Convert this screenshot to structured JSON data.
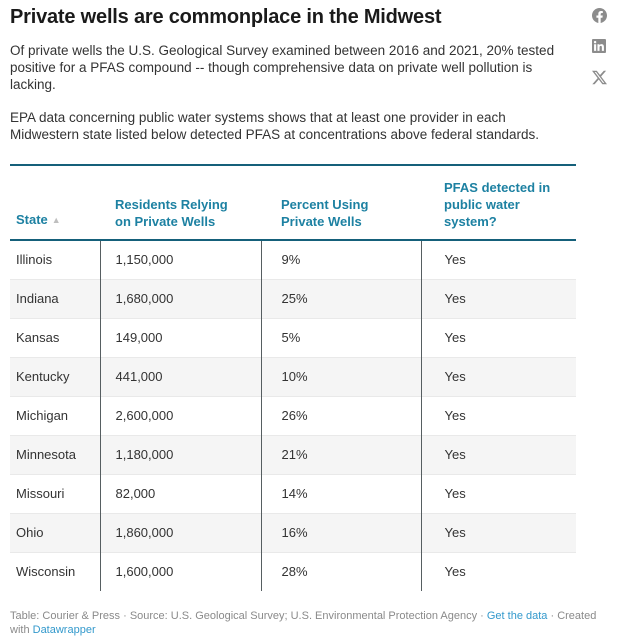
{
  "page": {
    "title": "Private wells are commonplace in the Midwest",
    "intro_1": "Of private wells the U.S. Geological Survey examined between 2016 and 2021, 20% tested positive for a PFAS compound -- though comprehensive data on private well pollution is lacking.",
    "intro_2": "EPA data concerning public water systems shows that at least one provider in each Midwestern state listed below detected PFAS at concentrations above federal standards."
  },
  "chart_data": {
    "type": "table",
    "title": "Private wells are commonplace in the Midwest",
    "columns": [
      "State",
      "Residents Relying on Private Wells",
      "Percent Using Private Wells",
      "PFAS detected in public water system?"
    ],
    "sort": {
      "column": "State",
      "direction": "ascending",
      "indicator": "▲"
    },
    "rows": [
      [
        "Illinois",
        "1,150,000",
        "9%",
        "Yes"
      ],
      [
        "Indiana",
        "1,680,000",
        "25%",
        "Yes"
      ],
      [
        "Kansas",
        "149,000",
        "5%",
        "Yes"
      ],
      [
        "Kentucky",
        "441,000",
        "10%",
        "Yes"
      ],
      [
        "Michigan",
        "2,600,000",
        "26%",
        "Yes"
      ],
      [
        "Minnesota",
        "1,180,000",
        "21%",
        "Yes"
      ],
      [
        "Missouri",
        "82,000",
        "14%",
        "Yes"
      ],
      [
        "Ohio",
        "1,860,000",
        "16%",
        "Yes"
      ],
      [
        "Wisconsin",
        "1,600,000",
        "28%",
        "Yes"
      ]
    ],
    "layout_hints": {
      "zebra_striping": true,
      "column_dividers": true,
      "header_color": "#1d81a2"
    }
  },
  "share": {
    "icons": [
      "facebook-icon",
      "linkedin-icon",
      "x-icon"
    ],
    "icon_color": "#8c8c8c"
  },
  "footer": {
    "text_before_link1": "Table: Courier & Press · Source: U.S. Geological Survey; U.S. Environmental Protection Agency · ",
    "link1": "Get the data",
    "text_between": " · Created with ",
    "link2": "Datawrapper"
  },
  "colors": {
    "header_text_teal": "#1d81a2",
    "rule_teal": "#15607a",
    "link_blue": "#3399cc",
    "column_divider": "#565e61",
    "zebra_row": "#f5f5f5",
    "footer_gray": "#8a8a8a",
    "icon_gray": "#8c8c8c"
  }
}
